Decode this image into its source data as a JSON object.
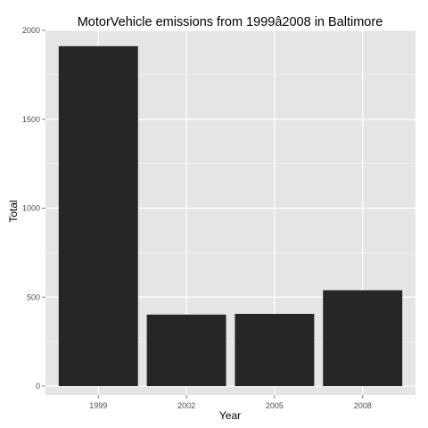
{
  "chart_data": {
    "type": "bar",
    "title": "MotorVehicle emissions from 1999â2008 in Baltimore",
    "xlabel": "Year",
    "ylabel": "Total",
    "categories": [
      "1999",
      "2002",
      "2005",
      "2008"
    ],
    "values": [
      1911,
      402,
      406,
      539
    ],
    "ylim": [
      -50,
      2000
    ],
    "yticks": [
      0,
      500,
      1000,
      1500,
      2000
    ],
    "ytick_labels": [
      "0",
      "500",
      "1000",
      "1500",
      "2000"
    ],
    "grid": true,
    "legend": "none",
    "colors": {
      "bar": "#262626",
      "panel": "#e5e5e5",
      "grid_major": "#ffffff",
      "grid_minor": "#f2f2f2",
      "tick_text": "#4d4d4d",
      "tick_mark": "#7f7f7f"
    }
  }
}
